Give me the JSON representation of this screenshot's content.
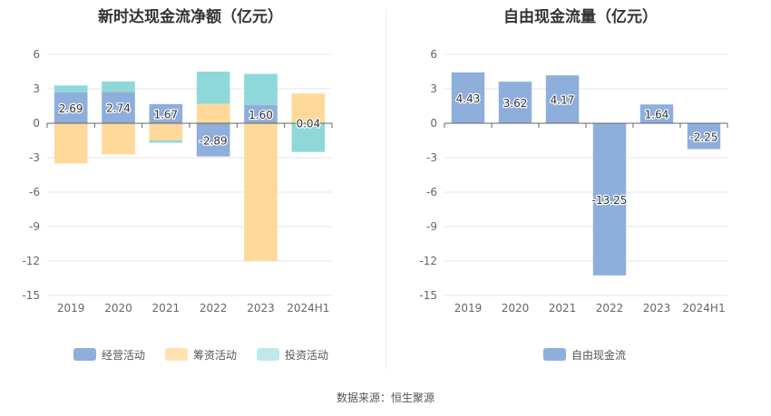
{
  "chart_data": [
    {
      "type": "bar",
      "stacked": true,
      "title": "新时达现金流净额（亿元）",
      "categories": [
        "2019",
        "2020",
        "2021",
        "2022",
        "2023",
        "2024H1"
      ],
      "series": [
        {
          "name": "经营活动",
          "color": "#8eaedc",
          "values": [
            2.69,
            2.74,
            1.67,
            -2.89,
            1.6,
            0.04
          ]
        },
        {
          "name": "筹资活动",
          "color": "#ffd99a",
          "values": [
            -3.5,
            -2.7,
            -1.5,
            1.7,
            -12.0,
            2.55
          ]
        },
        {
          "name": "投资活动",
          "color": "#8fd8da",
          "values": [
            0.6,
            0.9,
            -0.2,
            2.8,
            2.7,
            -2.5
          ]
        }
      ],
      "data_labels": [
        "2.69",
        "2.74",
        "1.67",
        "-2.89",
        "1.60",
        "0.04"
      ],
      "yticks": [
        6,
        3,
        0,
        -3,
        -6,
        -9,
        -12,
        -15
      ],
      "ylim": [
        -15,
        6
      ],
      "grid": true,
      "legend_position": "bottom"
    },
    {
      "type": "bar",
      "title": "自由现金流量（亿元）",
      "categories": [
        "2019",
        "2020",
        "2021",
        "2022",
        "2023",
        "2024H1"
      ],
      "series": [
        {
          "name": "自由现金流",
          "color": "#8eaedc",
          "values": [
            4.43,
            3.62,
            4.17,
            -13.25,
            1.64,
            -2.25
          ]
        }
      ],
      "data_labels": [
        "4.43",
        "3.62",
        "4.17",
        "-13.25",
        "1.64",
        "-2.25"
      ],
      "yticks": [
        6,
        3,
        0,
        -3,
        -6,
        -9,
        -12,
        -15
      ],
      "ylim": [
        -15,
        6
      ],
      "grid": true,
      "legend_position": "bottom"
    }
  ],
  "footer": {
    "source": "数据来源：恒生聚源"
  }
}
